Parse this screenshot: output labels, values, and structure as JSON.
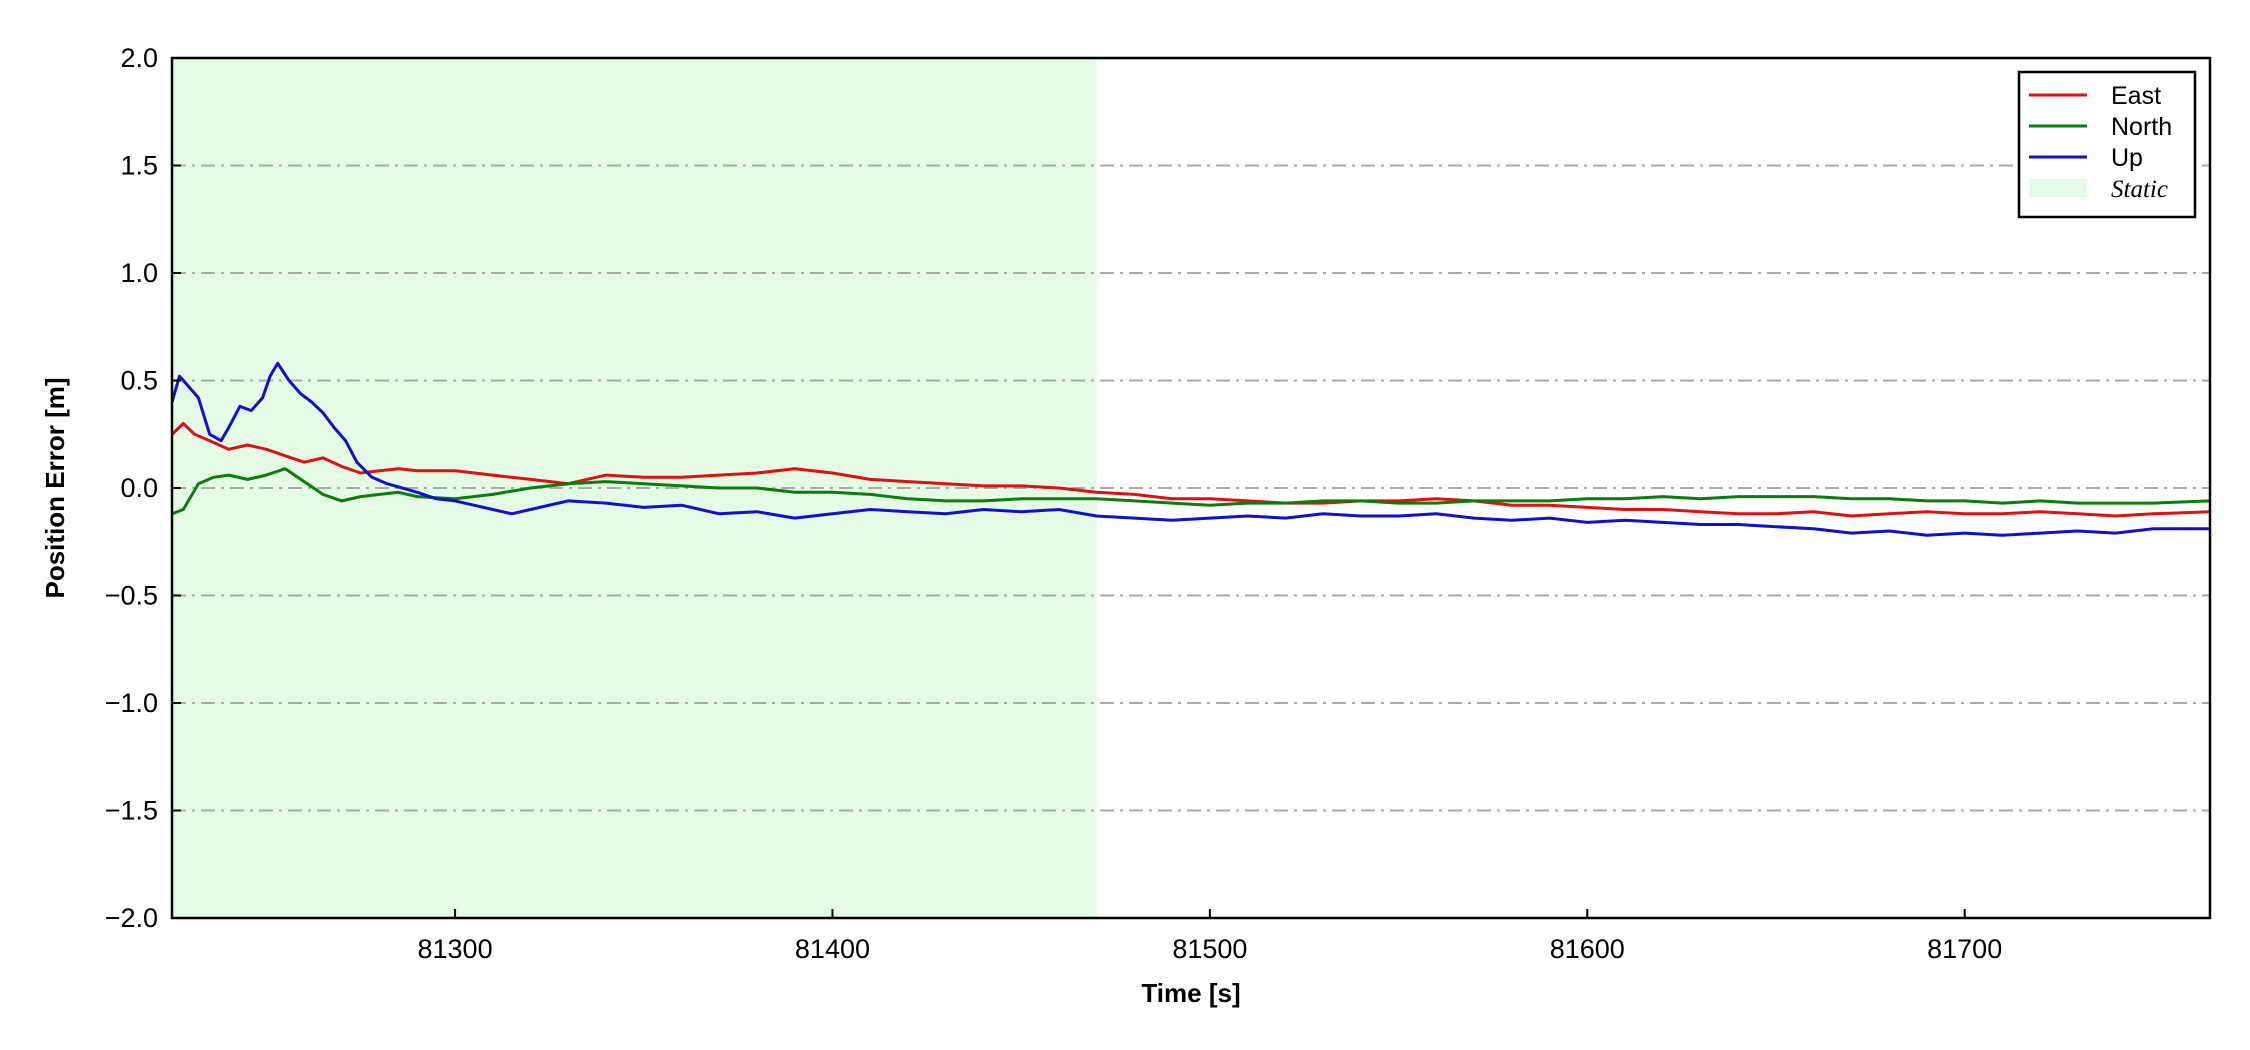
{
  "chart_data": {
    "type": "line",
    "xlabel": "Time [s]",
    "ylabel": "Position Error [m]",
    "xlim": [
      81225,
      81765
    ],
    "ylim": [
      -2.0,
      2.0
    ],
    "xticks": [
      81300,
      81400,
      81500,
      81600,
      81700
    ],
    "xtick_labels": [
      "81300",
      "81400",
      "81500",
      "81600",
      "81700"
    ],
    "yticks": [
      2.0,
      1.5,
      1.0,
      0.5,
      0.0,
      -0.5,
      -1.0,
      -1.5,
      -2.0
    ],
    "ytick_labels": [
      "2.0",
      "1.5",
      "1.0",
      "0.5",
      "0.0",
      "−0.5",
      "−1.0",
      "−1.5",
      "−2.0"
    ],
    "grid": "horizontal dash-dot",
    "legend_position": "top-right",
    "static_region": {
      "label": "Static",
      "x_start": 81225,
      "x_end": 81470,
      "color": "#e6fbe6"
    },
    "series": [
      {
        "name": "East",
        "color": "#e01010",
        "x": [
          81225,
          81228,
          81231,
          81235,
          81240,
          81245,
          81250,
          81255,
          81260,
          81265,
          81270,
          81275,
          81280,
          81285,
          81290,
          81300,
          81310,
          81320,
          81330,
          81340,
          81350,
          81360,
          81370,
          81380,
          81390,
          81400,
          81410,
          81420,
          81430,
          81440,
          81450,
          81460,
          81470,
          81480,
          81490,
          81500,
          81510,
          81520,
          81530,
          81540,
          81550,
          81560,
          81570,
          81580,
          81590,
          81600,
          81610,
          81620,
          81630,
          81640,
          81650,
          81660,
          81670,
          81680,
          81690,
          81700,
          81710,
          81720,
          81730,
          81740,
          81750,
          81765
        ],
        "y": [
          0.25,
          0.3,
          0.25,
          0.22,
          0.18,
          0.2,
          0.18,
          0.15,
          0.12,
          0.14,
          0.1,
          0.07,
          0.08,
          0.09,
          0.08,
          0.08,
          0.06,
          0.04,
          0.02,
          0.06,
          0.05,
          0.05,
          0.06,
          0.07,
          0.09,
          0.07,
          0.04,
          0.03,
          0.02,
          0.01,
          0.01,
          0.0,
          -0.02,
          -0.03,
          -0.05,
          -0.05,
          -0.06,
          -0.07,
          -0.07,
          -0.06,
          -0.06,
          -0.05,
          -0.06,
          -0.08,
          -0.08,
          -0.09,
          -0.1,
          -0.1,
          -0.11,
          -0.12,
          -0.12,
          -0.11,
          -0.13,
          -0.12,
          -0.11,
          -0.12,
          -0.12,
          -0.11,
          -0.12,
          -0.13,
          -0.12,
          -0.11
        ]
      },
      {
        "name": "North",
        "color": "#0a7d0a",
        "x": [
          81225,
          81228,
          81232,
          81236,
          81240,
          81245,
          81250,
          81255,
          81260,
          81265,
          81270,
          81275,
          81280,
          81285,
          81290,
          81300,
          81310,
          81320,
          81330,
          81340,
          81350,
          81360,
          81370,
          81380,
          81390,
          81400,
          81410,
          81420,
          81430,
          81440,
          81450,
          81460,
          81470,
          81480,
          81490,
          81500,
          81510,
          81520,
          81530,
          81540,
          81550,
          81560,
          81570,
          81580,
          81590,
          81600,
          81610,
          81620,
          81630,
          81640,
          81650,
          81660,
          81670,
          81680,
          81690,
          81700,
          81710,
          81720,
          81730,
          81740,
          81750,
          81765
        ],
        "y": [
          -0.12,
          -0.1,
          0.02,
          0.05,
          0.06,
          0.04,
          0.06,
          0.09,
          0.03,
          -0.03,
          -0.06,
          -0.04,
          -0.03,
          -0.02,
          -0.04,
          -0.05,
          -0.03,
          0.0,
          0.02,
          0.03,
          0.02,
          0.01,
          0.0,
          0.0,
          -0.02,
          -0.02,
          -0.03,
          -0.05,
          -0.06,
          -0.06,
          -0.05,
          -0.05,
          -0.05,
          -0.06,
          -0.07,
          -0.08,
          -0.07,
          -0.07,
          -0.06,
          -0.06,
          -0.07,
          -0.07,
          -0.06,
          -0.06,
          -0.06,
          -0.05,
          -0.05,
          -0.04,
          -0.05,
          -0.04,
          -0.04,
          -0.04,
          -0.05,
          -0.05,
          -0.06,
          -0.06,
          -0.07,
          -0.06,
          -0.07,
          -0.07,
          -0.07,
          -0.06
        ]
      },
      {
        "name": "Up",
        "color": "#1010d0",
        "x": [
          81225,
          81227,
          81229,
          81232,
          81235,
          81238,
          81240,
          81243,
          81246,
          81249,
          81251,
          81253,
          81256,
          81259,
          81262,
          81265,
          81268,
          81271,
          81274,
          81278,
          81282,
          81286,
          81290,
          81295,
          81300,
          81305,
          81310,
          81315,
          81320,
          81330,
          81340,
          81350,
          81360,
          81370,
          81380,
          81390,
          81400,
          81410,
          81420,
          81430,
          81440,
          81450,
          81460,
          81470,
          81480,
          81490,
          81500,
          81510,
          81520,
          81530,
          81540,
          81550,
          81560,
          81570,
          81580,
          81590,
          81600,
          81610,
          81620,
          81630,
          81640,
          81650,
          81660,
          81670,
          81680,
          81690,
          81700,
          81710,
          81720,
          81730,
          81740,
          81750,
          81765
        ],
        "y": [
          0.4,
          0.52,
          0.48,
          0.42,
          0.25,
          0.22,
          0.28,
          0.38,
          0.36,
          0.42,
          0.52,
          0.58,
          0.5,
          0.44,
          0.4,
          0.35,
          0.28,
          0.22,
          0.12,
          0.05,
          0.02,
          0.0,
          -0.02,
          -0.05,
          -0.06,
          -0.08,
          -0.1,
          -0.12,
          -0.1,
          -0.06,
          -0.07,
          -0.09,
          -0.08,
          -0.12,
          -0.11,
          -0.14,
          -0.12,
          -0.1,
          -0.11,
          -0.12,
          -0.1,
          -0.11,
          -0.1,
          -0.13,
          -0.14,
          -0.15,
          -0.14,
          -0.13,
          -0.14,
          -0.12,
          -0.13,
          -0.13,
          -0.12,
          -0.14,
          -0.15,
          -0.14,
          -0.16,
          -0.15,
          -0.16,
          -0.17,
          -0.17,
          -0.18,
          -0.19,
          -0.21,
          -0.2,
          -0.22,
          -0.21,
          -0.22,
          -0.21,
          -0.2,
          -0.21,
          -0.19,
          -0.19
        ]
      }
    ]
  }
}
